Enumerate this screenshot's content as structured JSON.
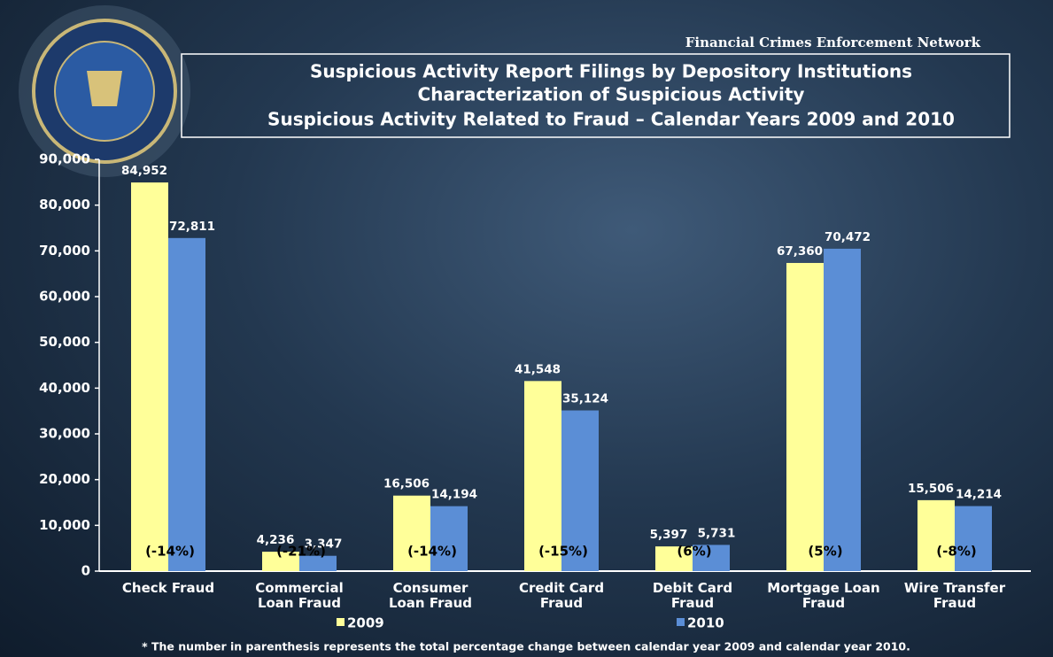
{
  "header": {
    "organization": "Financial Crimes Enforcement Network"
  },
  "chart_data": {
    "type": "bar",
    "title": "Suspicious Activity Report Filings by Depository Institutions",
    "subtitle": "Characterization of Suspicious Activity",
    "subtitle2": "Suspicious Activity Related to Fraud – Calendar Years 2009 and 2010",
    "categories": [
      "Check Fraud",
      "Commercial\nLoan Fraud",
      "Consumer\nLoan Fraud",
      "Credit Card\nFraud",
      "Debit Card\nFraud",
      "Mortgage Loan\nFraud",
      "Wire Transfer\nFraud"
    ],
    "series": [
      {
        "name": "2009",
        "color": "#ffff99",
        "values": [
          84952,
          4236,
          16506,
          41548,
          5397,
          67360,
          15506
        ],
        "value_labels": [
          "84,952",
          "4,236",
          "16,506",
          "41,548",
          "5,397",
          "67,360",
          "15,506"
        ]
      },
      {
        "name": "2010",
        "color": "#5b8ed6",
        "values": [
          72811,
          3347,
          14194,
          35124,
          5731,
          70472,
          14214
        ],
        "value_labels": [
          "72,811",
          "3,347",
          "14,194",
          "35,124",
          "5,731",
          "70,472",
          "14,214"
        ]
      }
    ],
    "annotations": [
      "(-14%)",
      "(-21%)",
      "(-14%)",
      "(-15%)",
      "(6%)",
      "(5%)",
      "(-8%)"
    ],
    "ylim": [
      0,
      90000
    ],
    "yticks": [
      0,
      {
        "value": 10000,
        "label": "10,000"
      },
      {
        "value": 20000,
        "label": "20,000"
      },
      {
        "value": 30000,
        "label": "30,000"
      },
      {
        "value": 40000,
        "label": "40,000"
      },
      {
        "value": 50000,
        "label": "50,000"
      },
      {
        "value": 60000,
        "label": "60,000"
      },
      {
        "value": 70000,
        "label": "70,000"
      },
      {
        "value": 80000,
        "label": "80,000"
      },
      {
        "value": 90000,
        "label": "90,000"
      }
    ],
    "legend": "bottom",
    "footnote": "* The number in parenthesis represents the total percentage change between calendar year 2009 and calendar year 2010."
  }
}
